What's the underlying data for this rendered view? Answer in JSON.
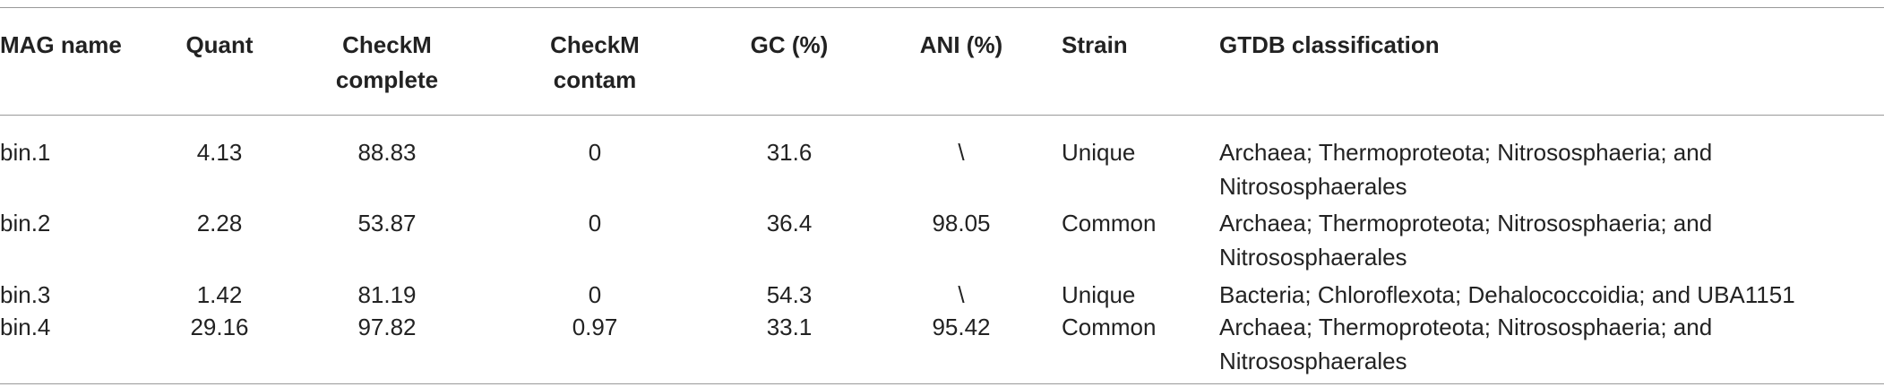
{
  "table": {
    "header": [
      "MAG name",
      "Quant",
      "CheckM complete",
      "CheckM contam",
      "GC (%)",
      "ANI (%)",
      "Strain",
      "GTDB classification"
    ],
    "rows": [
      [
        "bin.1",
        "4.13",
        "88.83",
        "0",
        "31.6",
        "\\",
        "Unique",
        "Archaea; Thermoproteota; Nitrososphaeria; and Nitrososphaerales"
      ],
      [
        "bin.2",
        "2.28",
        "53.87",
        "0",
        "36.4",
        "98.05",
        "Common",
        "Archaea; Thermoproteota; Nitrososphaeria; and Nitrososphaerales"
      ],
      [
        "bin.3",
        "1.42",
        "81.19",
        "0",
        "54.3",
        "\\",
        "Unique",
        "Bacteria; Chloroflexota; Dehalococcoidia; and UBA1151"
      ],
      [
        "bin.4",
        "29.16",
        "97.82",
        "0.97",
        "33.1",
        "95.42",
        "Common",
        "Archaea; Thermoproteota; Nitrososphaeria; and Nitrososphaerales"
      ]
    ]
  }
}
